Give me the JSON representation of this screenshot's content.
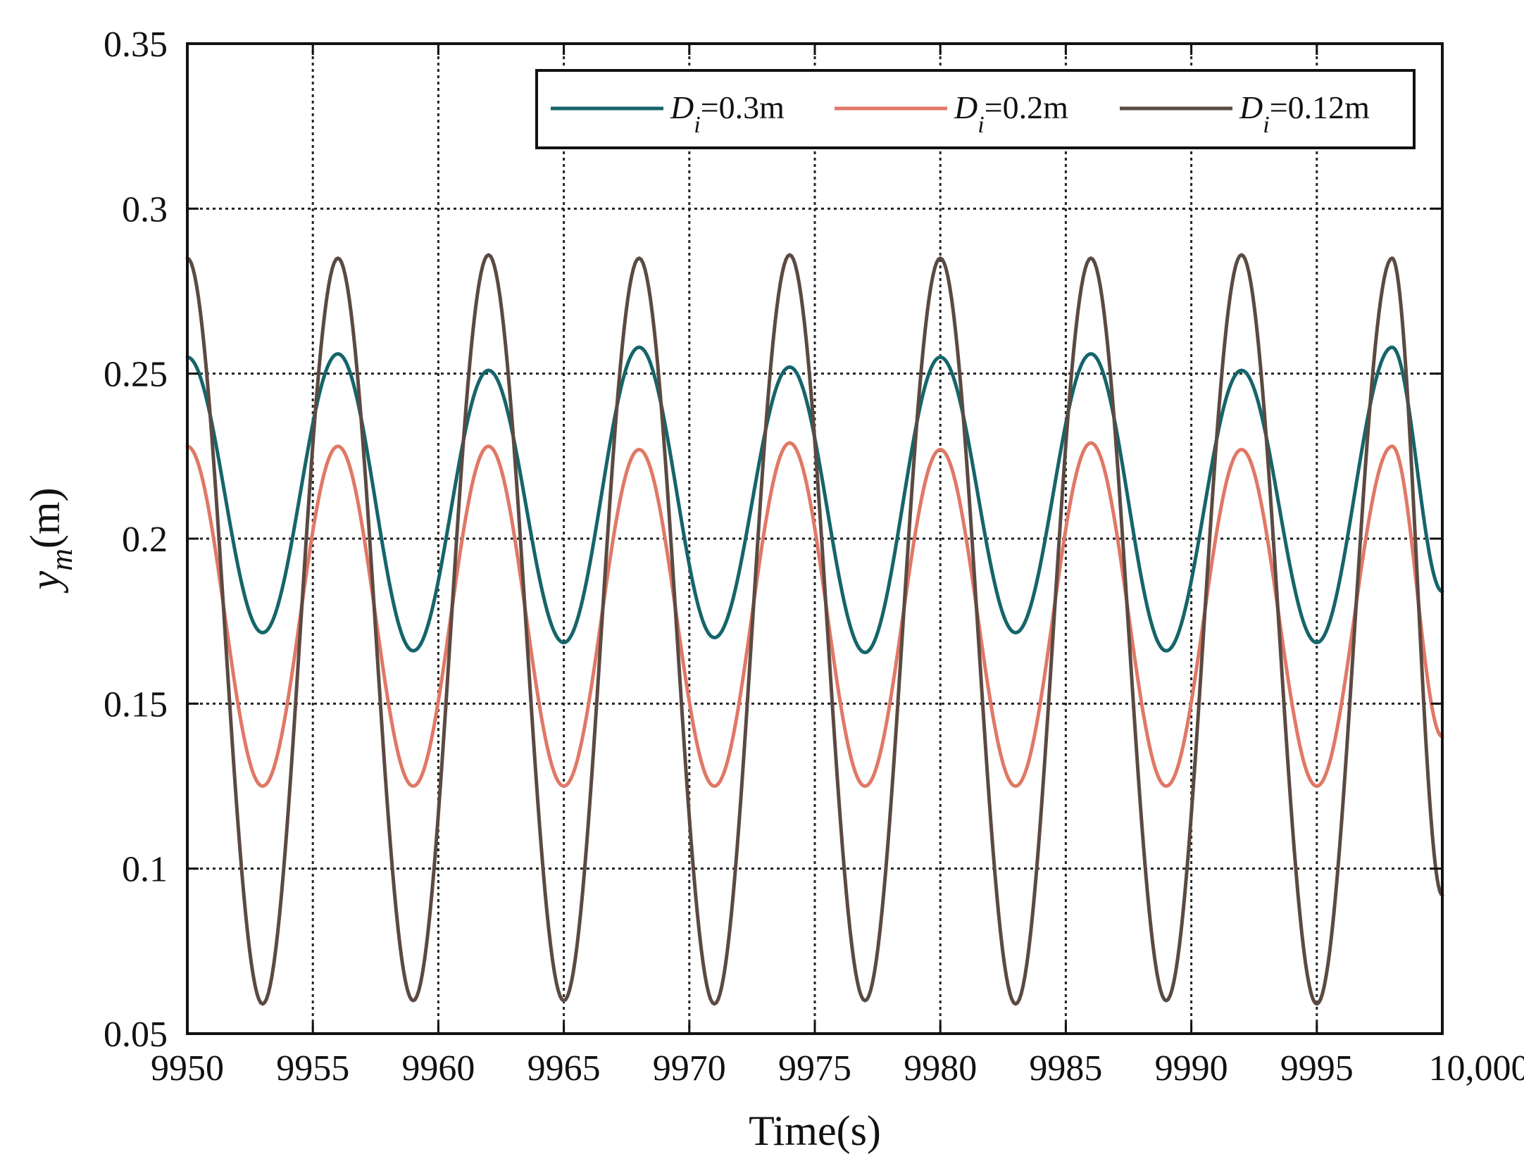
{
  "chart_data": {
    "type": "line",
    "title": "",
    "xlabel": "Time(s)",
    "ylabel": {
      "main": "y",
      "sub": "m",
      "unit": "(m)"
    },
    "xlim": [
      9950,
      10000
    ],
    "ylim": [
      0.05,
      0.35
    ],
    "xticks": [
      9950,
      9955,
      9960,
      9965,
      9970,
      9975,
      9980,
      9985,
      9990,
      9995,
      10000
    ],
    "xtick_labels": [
      "9950",
      "9955",
      "9960",
      "9965",
      "9970",
      "9975",
      "9980",
      "9985",
      "9990",
      "9995",
      "10,000"
    ],
    "yticks": [
      0.05,
      0.1,
      0.15,
      0.2,
      0.25,
      0.3,
      0.35
    ],
    "ytick_labels": [
      "0.05",
      "0.1",
      "0.15",
      "0.2",
      "0.25",
      "0.3",
      "0.35"
    ],
    "grid": true,
    "legend_position": "top-right",
    "series": [
      {
        "name": "Di=0.3m",
        "legend": {
          "symbol": "D",
          "sub": "i",
          "rest": "=0.3m"
        },
        "color": "#15656B",
        "x": [
          9950.0,
          9953.0,
          9956.0,
          9959.0,
          9962.0,
          9965.0,
          9968.0,
          9971.0,
          9974.0,
          9977.0,
          9980.0,
          9983.0,
          9986.0,
          9989.0,
          9992.0,
          9995.0,
          9998.0,
          10000.0
        ],
        "y": [
          0.255,
          0.1715,
          0.256,
          0.166,
          0.251,
          0.1685,
          0.258,
          0.17,
          0.252,
          0.1655,
          0.255,
          0.1715,
          0.256,
          0.166,
          0.251,
          0.1685,
          0.258,
          0.184
        ]
      },
      {
        "name": "Di=0.2m",
        "legend": {
          "symbol": "D",
          "sub": "i",
          "rest": "=0.2m"
        },
        "color": "#E07866",
        "x": [
          9950.0,
          9953.0,
          9956.0,
          9959.0,
          9962.0,
          9965.0,
          9968.0,
          9971.0,
          9974.0,
          9977.0,
          9980.0,
          9983.0,
          9986.0,
          9989.0,
          9992.0,
          9995.0,
          9998.0,
          10000.0
        ],
        "y": [
          0.228,
          0.125,
          0.228,
          0.125,
          0.228,
          0.125,
          0.227,
          0.125,
          0.229,
          0.125,
          0.227,
          0.125,
          0.229,
          0.125,
          0.227,
          0.125,
          0.228,
          0.14
        ]
      },
      {
        "name": "Di=0.12m",
        "legend": {
          "symbol": "D",
          "sub": "i",
          "rest": "=0.12m"
        },
        "color": "#5B4A42",
        "x": [
          9950.0,
          9953.0,
          9956.0,
          9959.0,
          9962.0,
          9965.0,
          9968.0,
          9971.0,
          9974.0,
          9977.0,
          9980.0,
          9983.0,
          9986.0,
          9989.0,
          9992.0,
          9995.0,
          9998.0,
          10000.0
        ],
        "y": [
          0.285,
          0.059,
          0.285,
          0.06,
          0.286,
          0.06,
          0.285,
          0.059,
          0.286,
          0.06,
          0.285,
          0.059,
          0.285,
          0.06,
          0.286,
          0.059,
          0.285,
          0.092
        ]
      }
    ]
  }
}
